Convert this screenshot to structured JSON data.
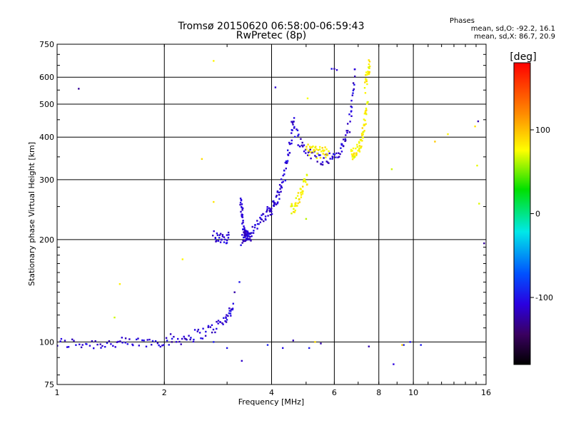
{
  "chart_data": {
    "type": "scatter",
    "title": "Tromsø 20150620 06:58:00-06:59:43",
    "subtitle": "RwPretec (8p)",
    "xlabel": "Frequency [MHz]",
    "ylabel": "Stationary phase Virtual Height [km]",
    "xscale": "log",
    "yscale": "log",
    "xlim": [
      1,
      16
    ],
    "ylim": [
      75,
      750
    ],
    "xticks": [
      1,
      2,
      4,
      6,
      8,
      10,
      16
    ],
    "xtick_labels": [
      "1",
      "2",
      "4",
      "6",
      "8",
      "10",
      "16"
    ],
    "yticks": [
      75,
      100,
      200,
      300,
      400,
      500,
      600,
      750
    ],
    "ytick_labels": [
      "75",
      "100",
      "200",
      "300",
      "400",
      "500",
      "600",
      "750"
    ],
    "grid": true,
    "colorbar": {
      "label": "[deg]",
      "range": [
        -180,
        180
      ],
      "ticks": [
        100,
        0,
        -100
      ],
      "tick_labels": [
        "100",
        "0",
        "-100"
      ]
    },
    "stats": {
      "heading": "Phases",
      "line1": "mean, sd,O: -92.2, 16.1",
      "line2": "mean, sd,X:  86.7, 20.9"
    },
    "series": [
      {
        "mode": "O",
        "color_value": -110,
        "traces": [
          {
            "f": [
              1.0,
              1.15,
              1.3,
              1.45,
              1.6,
              1.8,
              2.0,
              2.2,
              2.4,
              2.6,
              2.8,
              2.95,
              3.05,
              3.12
            ],
            "h": [
              99,
              99,
              99,
              99,
              99,
              100,
              101,
              102,
              104,
              107,
              111,
              116,
              122,
              128
            ]
          },
          {
            "f": [
              3.3,
              3.4,
              3.55,
              3.7,
              3.85,
              3.95,
              4.05,
              4.15,
              4.25,
              4.35,
              4.45,
              4.55,
              4.62
            ],
            "h": [
              200,
              205,
              215,
              225,
              235,
              243,
              252,
              265,
              285,
              310,
              355,
              410,
              470
            ]
          },
          {
            "f": [
              4.6,
              4.8,
              5.0,
              5.3,
              5.6,
              5.9,
              6.2,
              6.4,
              6.6,
              6.75,
              6.85
            ],
            "h": [
              430,
              390,
              365,
              350,
              345,
              348,
              360,
              385,
              430,
              520,
              640
            ]
          },
          {
            "f": [
              3.28,
              3.3,
              3.32,
              3.35,
              3.38,
              3.42,
              3.46,
              3.5
            ],
            "h": [
              265,
              245,
              225,
              210,
              205,
              203,
              202,
              201
            ]
          },
          {
            "f": [
              2.75,
              2.85,
              2.95,
              3.05
            ],
            "h": [
              205,
              204,
              203,
              202
            ]
          }
        ],
        "scatter": [
          [
            5.9,
            635
          ],
          [
            6.1,
            630
          ],
          [
            6.0,
            635
          ],
          [
            4.1,
            560
          ],
          [
            1.15,
            555
          ],
          [
            2.75,
            100
          ],
          [
            3.9,
            98
          ],
          [
            4.3,
            96
          ],
          [
            4.6,
            101
          ],
          [
            5.1,
            96
          ],
          [
            5.5,
            99
          ],
          [
            7.5,
            97
          ],
          [
            8.8,
            86
          ],
          [
            9.4,
            98
          ],
          [
            9.8,
            100
          ],
          [
            10.5,
            98
          ],
          [
            3.3,
            88
          ],
          [
            3.0,
            96
          ],
          [
            15.2,
            445
          ],
          [
            15.8,
            195
          ],
          [
            2.3,
            102
          ],
          [
            2.1,
            100
          ],
          [
            3.25,
            150
          ],
          [
            3.15,
            140
          ]
        ]
      },
      {
        "mode": "X",
        "color_value": 80,
        "traces": [
          {
            "f": [
              4.55,
              4.65,
              4.75,
              4.85,
              4.95,
              5.05
            ],
            "h": [
              245,
              252,
              262,
              275,
              290,
              305
            ]
          },
          {
            "f": [
              5.0,
              5.2,
              5.4,
              5.6,
              5.8
            ],
            "h": [
              370,
              365,
              360,
              360,
              365
            ]
          },
          {
            "f": [
              6.7,
              6.8,
              6.95,
              7.05,
              7.15,
              7.25,
              7.35,
              7.45
            ],
            "h": [
              355,
              358,
              365,
              375,
              395,
              420,
              460,
              520
            ]
          },
          {
            "f": [
              7.3,
              7.4,
              7.5,
              7.55
            ],
            "h": [
              560,
              600,
              640,
              650
            ]
          }
        ],
        "scatter": [
          [
            2.75,
            670
          ],
          [
            2.55,
            345
          ],
          [
            2.75,
            258
          ],
          [
            1.45,
            118
          ],
          [
            1.5,
            148
          ],
          [
            5.05,
            520
          ],
          [
            5.0,
            230
          ],
          [
            8.7,
            322
          ],
          [
            12.5,
            408
          ],
          [
            11.5,
            388
          ],
          [
            15.3,
            255
          ],
          [
            14.9,
            430
          ],
          [
            15.1,
            330
          ],
          [
            5.3,
            100
          ],
          [
            9.3,
            98
          ],
          [
            2.25,
            175
          ]
        ]
      }
    ]
  }
}
